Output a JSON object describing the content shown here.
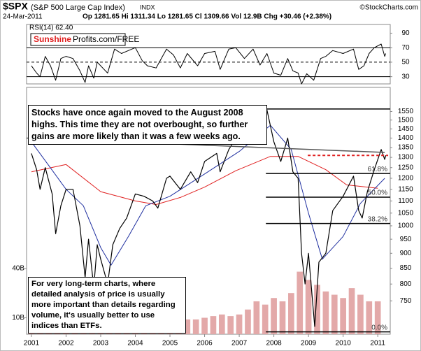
{
  "header": {
    "symbol": "$SPX",
    "name": "(S&P 500 Large Cap Index)",
    "exchange": "INDX",
    "credit": "©StockCharts.com",
    "date": "24-Mar-2011",
    "quote": "Op 1281.65  Hi 1311.34  Lo 1281.65  Cl 1309.66  Vol 12.9B  Chg +30.46 (+2.38%)"
  },
  "badge": {
    "brand": "Sunshine",
    "site": "Profits.com/FREE"
  },
  "chart_data": [
    {
      "type": "line",
      "label": "RSI(14) 62.40",
      "color": "#000000",
      "x": [
        2001.0,
        2001.15,
        2001.25,
        2001.4,
        2001.55,
        2001.7,
        2001.85,
        2002.0,
        2002.2,
        2002.4,
        2002.55,
        2002.65,
        2002.8,
        2002.9,
        2003.1,
        2003.2,
        2003.4,
        2003.6,
        2003.8,
        2004.0,
        2004.2,
        2004.35,
        2004.6,
        2004.9,
        2005.1,
        2005.3,
        2005.5,
        2005.8,
        2006.0,
        2006.3,
        2006.45,
        2006.7,
        2006.9,
        2007.15,
        2007.4,
        2007.6,
        2007.8,
        2008.0,
        2008.2,
        2008.4,
        2008.55,
        2008.7,
        2008.8,
        2008.95,
        2009.15,
        2009.35,
        2009.5,
        2009.7,
        2010.0,
        2010.3,
        2010.45,
        2010.6,
        2010.75,
        2010.9,
        2011.1,
        2011.2,
        2011.23
      ],
      "values": [
        45,
        35,
        30,
        58,
        45,
        25,
        55,
        58,
        55,
        38,
        22,
        45,
        28,
        50,
        40,
        35,
        68,
        62,
        66,
        70,
        52,
        45,
        42,
        68,
        60,
        42,
        62,
        45,
        62,
        65,
        40,
        68,
        70,
        55,
        68,
        46,
        62,
        35,
        32,
        55,
        38,
        35,
        20,
        34,
        25,
        55,
        58,
        66,
        62,
        68,
        40,
        45,
        62,
        70,
        75,
        58,
        62
      ],
      "xlim": [
        2000.86,
        2011.36
      ],
      "ylim": [
        20,
        102
      ],
      "yticks": [
        30,
        50,
        70,
        90
      ],
      "reference_lines": [
        30,
        50,
        70
      ],
      "reference_styles": [
        "solid",
        "dashed",
        "solid"
      ]
    },
    {
      "type": "line",
      "log_scale": true,
      "xlim": [
        2000.86,
        2011.36
      ],
      "xticks": [
        2001,
        2002,
        2003,
        2004,
        2005,
        2006,
        2007,
        2008,
        2009,
        2010,
        2011
      ],
      "ylim": [
        660,
        1700
      ],
      "yticks": [
        750,
        800,
        850,
        900,
        950,
        1000,
        1050,
        1100,
        1150,
        1200,
        1250,
        1300,
        1350,
        1400,
        1450,
        1500,
        1550
      ],
      "y2lim": [
        0,
        150
      ],
      "y2ticks": [
        {
          "value": 10,
          "label": "10B"
        },
        {
          "value": 40,
          "label": "40B"
        }
      ],
      "series": [
        {
          "type": "bar",
          "axis": "y2",
          "color": "#e3a9a9",
          "x": [
            2001.0,
            2001.25,
            2001.5,
            2001.75,
            2002.0,
            2002.25,
            2002.5,
            2002.75,
            2003.0,
            2003.25,
            2003.5,
            2003.75,
            2004.0,
            2004.25,
            2004.5,
            2004.75,
            2005.0,
            2005.25,
            2005.5,
            2005.75,
            2006.0,
            2006.25,
            2006.5,
            2006.75,
            2007.0,
            2007.25,
            2007.5,
            2007.75,
            2008.0,
            2008.25,
            2008.5,
            2008.75,
            2009.0,
            2009.25,
            2009.5,
            2009.75,
            2010.0,
            2010.25,
            2010.5,
            2010.75,
            2011.0
          ],
          "values": [
            6,
            7,
            6,
            8,
            7,
            8,
            10,
            9,
            8,
            7,
            7,
            7,
            8,
            7,
            7,
            8,
            8,
            8,
            9,
            9,
            10,
            11,
            12,
            11,
            12,
            15,
            20,
            18,
            22,
            20,
            25,
            38,
            33,
            30,
            26,
            24,
            22,
            28,
            24,
            20,
            20
          ]
        },
        {
          "type": "line",
          "color": "#e02020",
          "x": [
            2001.0,
            2002.0,
            2003.0,
            2004.0,
            2004.6,
            2005.3,
            2006.0,
            2006.9,
            2007.9,
            2008.7,
            2009.5,
            2010.1,
            2011.0
          ],
          "values": [
            1230,
            1265,
            1140,
            1100,
            1085,
            1115,
            1160,
            1235,
            1305,
            1305,
            1240,
            1170,
            1155
          ]
        },
        {
          "type": "line",
          "color": "#2030a0",
          "x": [
            2001.0,
            2001.5,
            2002.0,
            2002.5,
            2003.0,
            2003.3,
            2003.8,
            2004.3,
            2005.0,
            2006.0,
            2007.0,
            2007.9,
            2008.5,
            2009.0,
            2009.4,
            2010.0,
            2010.5,
            2011.2
          ],
          "values": [
            1380,
            1260,
            1150,
            1080,
            920,
            860,
            960,
            1080,
            1120,
            1220,
            1330,
            1470,
            1340,
            1050,
            880,
            960,
            1090,
            1200
          ]
        },
        {
          "type": "line",
          "color": "#000000",
          "x": [
            2001.0,
            2001.15,
            2001.25,
            2001.4,
            2001.6,
            2001.7,
            2001.85,
            2002.0,
            2002.2,
            2002.4,
            2002.55,
            2002.65,
            2002.8,
            2002.9,
            2003.0,
            2003.2,
            2003.35,
            2003.55,
            2003.75,
            2004.0,
            2004.25,
            2004.5,
            2004.65,
            2004.9,
            2005.0,
            2005.3,
            2005.6,
            2005.8,
            2006.0,
            2006.35,
            2006.45,
            2006.7,
            2007.0,
            2007.15,
            2007.45,
            2007.6,
            2007.8,
            2008.0,
            2008.2,
            2008.4,
            2008.55,
            2008.7,
            2008.8,
            2008.9,
            2009.0,
            2009.18,
            2009.3,
            2009.5,
            2009.7,
            2010.0,
            2010.3,
            2010.45,
            2010.55,
            2010.7,
            2010.9,
            2011.1,
            2011.2,
            2011.23
          ],
          "values": [
            1320,
            1240,
            1150,
            1250,
            1130,
            970,
            1080,
            1150,
            1150,
            1000,
            820,
            950,
            790,
            930,
            880,
            800,
            930,
            990,
            1030,
            1130,
            1120,
            1100,
            1070,
            1200,
            1210,
            1150,
            1230,
            1180,
            1280,
            1320,
            1230,
            1340,
            1430,
            1380,
            1530,
            1420,
            1560,
            1380,
            1280,
            1400,
            1230,
            1200,
            900,
            800,
            900,
            680,
            870,
            900,
            1060,
            1120,
            1210,
            1060,
            1030,
            1140,
            1240,
            1340,
            1290,
            1310
          ]
        }
      ],
      "trend_line": {
        "x": [
          2000.86,
          2011.2
        ],
        "values": [
          1400,
          1325
        ],
        "color": "#555555"
      },
      "dashed_level": {
        "x": [
          2008.98,
          2011.3
        ],
        "value": 1310,
        "color": "#e02020"
      },
      "level_start": 2007.77,
      "levels": [
        1565,
        1222,
        1116,
        1009,
        666
      ],
      "level_labels": [
        null,
        "61.8%",
        "50.0%",
        "38.2%",
        "0.0%"
      ],
      "annotations": [
        "Stocks have once again moved to the August 2008 highs. This time they are not overbought, so further gains are more likely than it was a few weeks ago.",
        "For very long-term charts, where detailed analysis of price is usually more important than details regarding volume, it's usually better to use indices than ETFs."
      ]
    }
  ]
}
